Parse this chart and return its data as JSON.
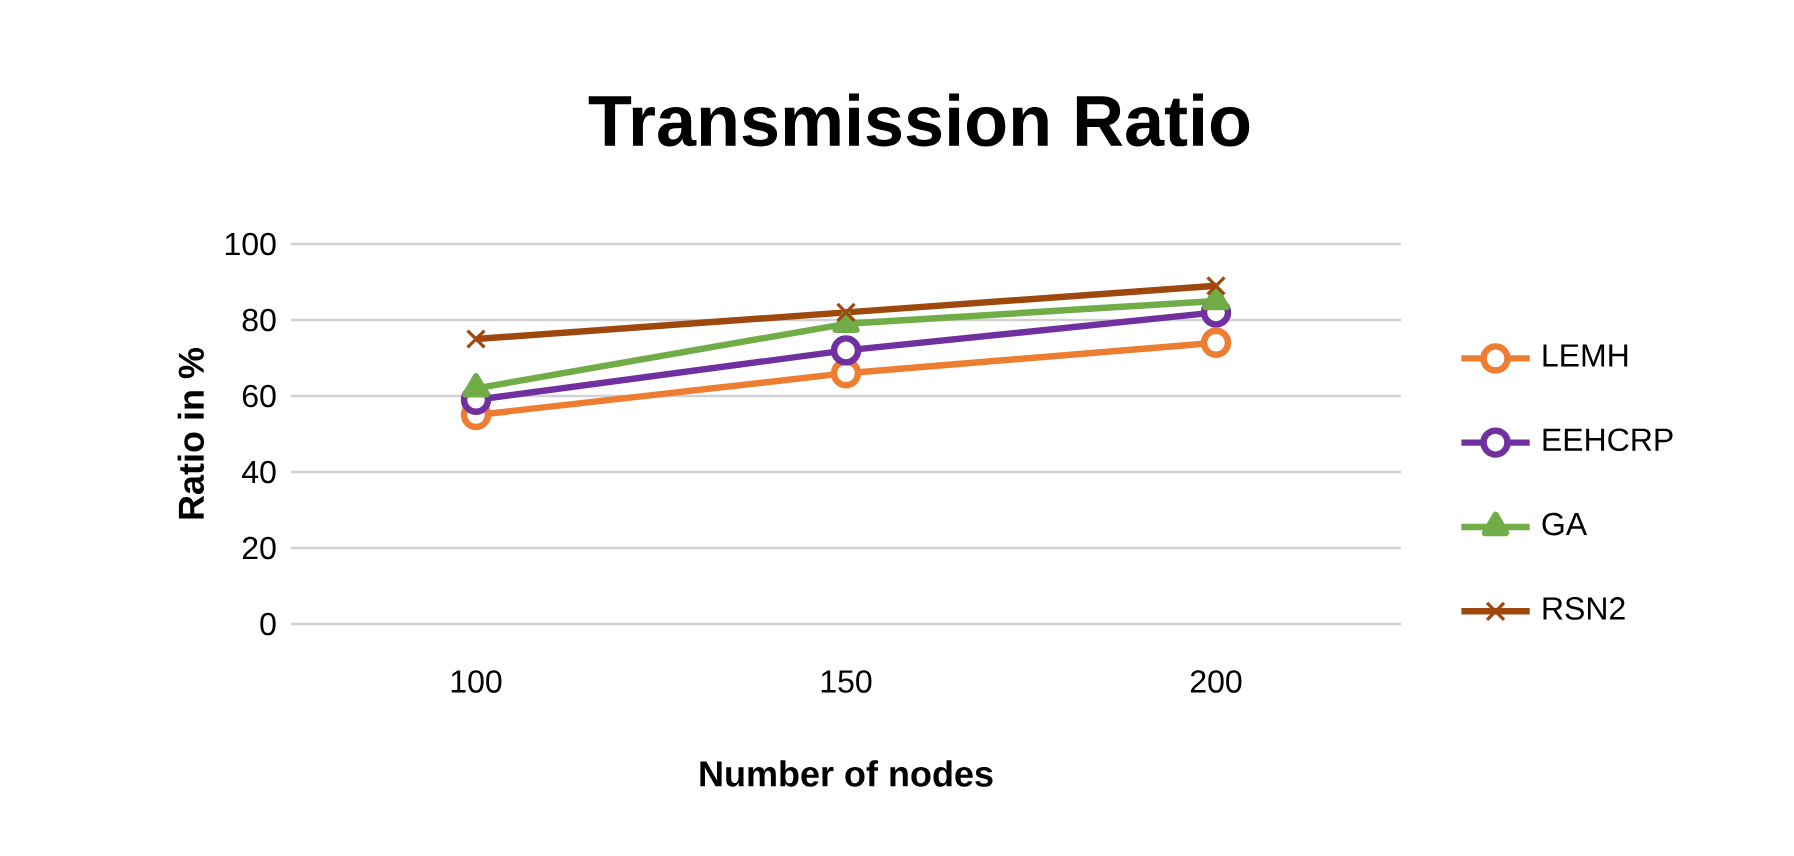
{
  "chart_data": {
    "type": "line",
    "title": "Transmission Ratio",
    "xlabel": "Number of nodes",
    "ylabel": "Ratio in  %",
    "categories": [
      "100",
      "150",
      "200"
    ],
    "series": [
      {
        "name": "LEMH",
        "color": "#ed7d31",
        "values": [
          55,
          66,
          74
        ],
        "marker": "circle"
      },
      {
        "name": "EEHCRP",
        "color": "#7030a0",
        "values": [
          59,
          72,
          82
        ],
        "marker": "circle"
      },
      {
        "name": "GA",
        "color": "#70ad47",
        "values": [
          62,
          79,
          85
        ],
        "marker": "triangle"
      },
      {
        "name": "RSN2",
        "color": "#9e480e",
        "values": [
          75,
          82,
          89
        ],
        "marker": "cross"
      }
    ],
    "ylim": [
      0,
      100
    ],
    "yticks": [
      0,
      20,
      40,
      60,
      80,
      100
    ],
    "grid": "y",
    "legend": "right"
  }
}
